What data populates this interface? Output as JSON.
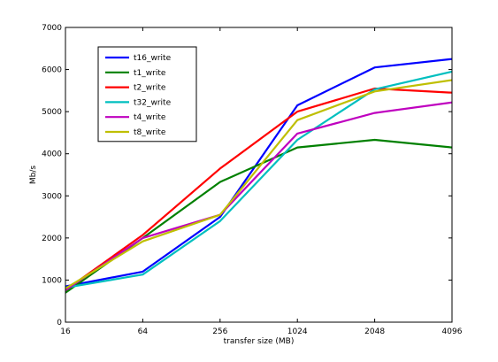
{
  "chart_data": {
    "type": "line",
    "categories": [
      "16",
      "64",
      "256",
      "1024",
      "2048",
      "4096"
    ],
    "xlabel": "transfer size (MB)",
    "ylabel": "Mb/s",
    "ylim": [
      0,
      7000
    ],
    "yticks": [
      0,
      1000,
      2000,
      3000,
      4000,
      5000,
      6000,
      7000
    ],
    "grid": false,
    "legend_position": "top-left",
    "series": [
      {
        "name": "t16_write",
        "color": "#0000ff",
        "values": [
          850,
          1200,
          2500,
          5150,
          6050,
          6250
        ]
      },
      {
        "name": "t1_write",
        "color": "#008000",
        "values": [
          700,
          2000,
          3330,
          4150,
          4330,
          4150
        ]
      },
      {
        "name": "t2_write",
        "color": "#ff0000",
        "values": [
          760,
          2070,
          3650,
          5000,
          5550,
          5450
        ]
      },
      {
        "name": "t32_write",
        "color": "#00bfbf",
        "values": [
          820,
          1130,
          2400,
          4330,
          5530,
          5950
        ]
      },
      {
        "name": "t4_write",
        "color": "#bf00bf",
        "values": [
          760,
          2000,
          2550,
          4480,
          4970,
          5220
        ]
      },
      {
        "name": "t8_write",
        "color": "#bfbf00",
        "values": [
          800,
          1920,
          2550,
          4800,
          5480,
          5750
        ]
      }
    ]
  }
}
